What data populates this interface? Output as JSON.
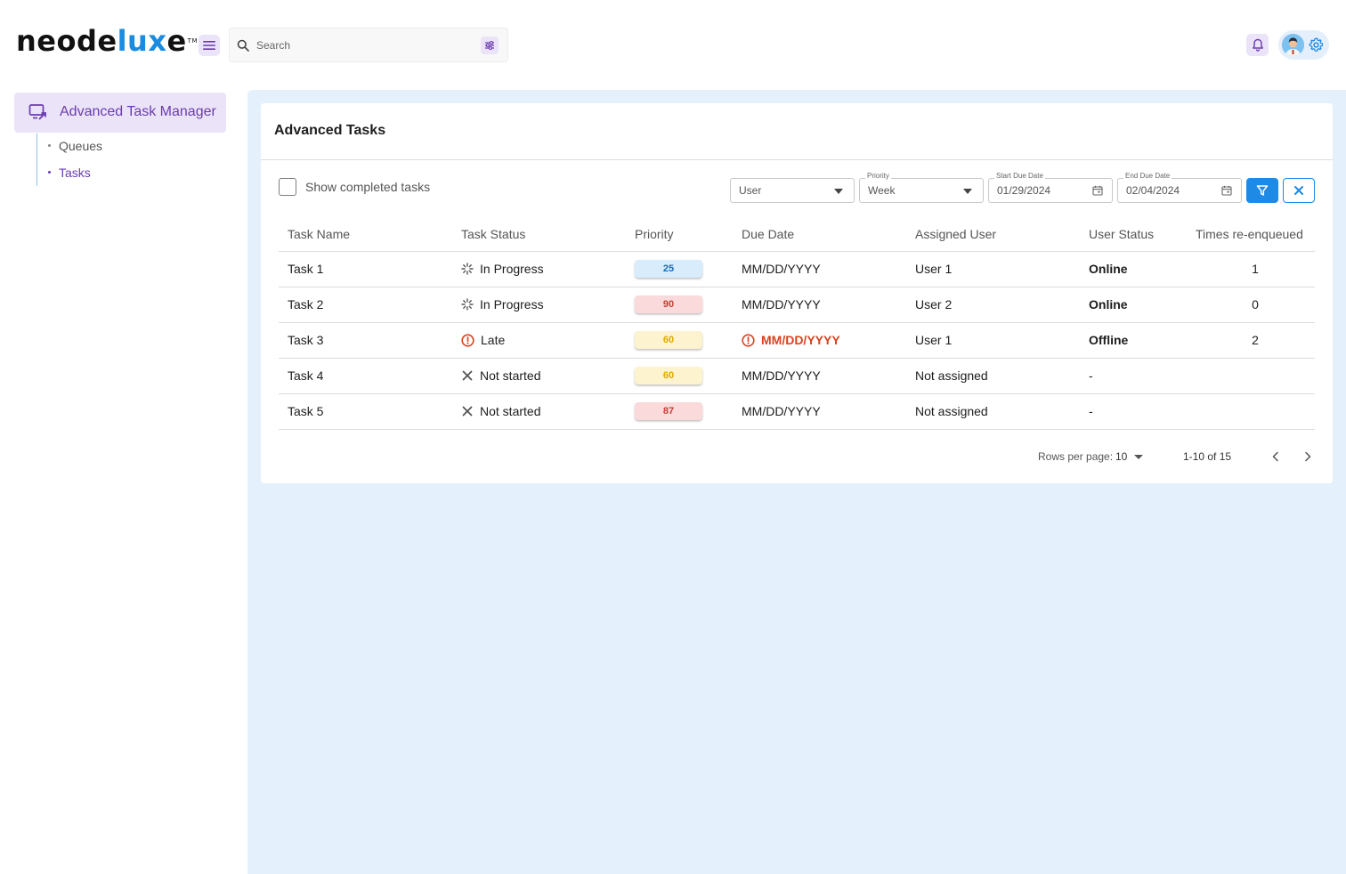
{
  "brand": {
    "prefix": "neode",
    "accent": "lux",
    "suffix": "e",
    "tm": "TM"
  },
  "search": {
    "placeholder": "Search"
  },
  "sidebar": {
    "active_section": "Advanced Task Manager",
    "items": [
      {
        "label": "Queues",
        "active": false
      },
      {
        "label": "Tasks",
        "active": true
      }
    ]
  },
  "card": {
    "title": "Advanced Tasks",
    "show_completed_label": "Show completed tasks",
    "filters": {
      "user": {
        "value": "User"
      },
      "priority": {
        "label": "Priority",
        "value": "Week"
      },
      "start_due": {
        "label": "Start Due Date",
        "value": "01/29/2024"
      },
      "end_due": {
        "label": "End Due Date",
        "value": "02/04/2024"
      }
    }
  },
  "table": {
    "headers": [
      "Task Name",
      "Task Status",
      "Priority",
      "Due Date",
      "Assigned User",
      "User Status",
      "Times re-enqueued"
    ],
    "rows": [
      {
        "name": "Task 1",
        "status": "In Progress",
        "status_icon": "spinner-icon",
        "priority": "25",
        "priority_color": "blue",
        "due": "MM/DD/YYYY",
        "due_late": false,
        "user": "User 1",
        "user_status": "Online",
        "requeued": "1"
      },
      {
        "name": "Task 2",
        "status": "In Progress",
        "status_icon": "spinner-icon",
        "priority": "90",
        "priority_color": "red",
        "due": "MM/DD/YYYY",
        "due_late": false,
        "user": "User 2",
        "user_status": "Online",
        "requeued": "0"
      },
      {
        "name": "Task 3",
        "status": "Late",
        "status_icon": "alert-icon",
        "priority": "60",
        "priority_color": "yellow",
        "due": "MM/DD/YYYY",
        "due_late": true,
        "user": "User 1",
        "user_status": "Offline",
        "requeued": "2"
      },
      {
        "name": "Task 4",
        "status": "Not started",
        "status_icon": "x-icon",
        "priority": "60",
        "priority_color": "yellow",
        "due": "MM/DD/YYYY",
        "due_late": false,
        "user": "Not assigned",
        "user_status": "-",
        "requeued": ""
      },
      {
        "name": "Task 5",
        "status": "Not started",
        "status_icon": "x-icon",
        "priority": "87",
        "priority_color": "red",
        "due": "MM/DD/YYYY",
        "due_late": false,
        "user": "Not assigned",
        "user_status": "-",
        "requeued": ""
      }
    ]
  },
  "pagination": {
    "rows_per_page_label": "Rows per page:",
    "rows_per_page": "10",
    "range": "1-10 of 15"
  },
  "colors": {
    "accent_purple": "#6a3cb0",
    "accent_blue": "#1f8ae6",
    "main_bg": "#e4f1fd",
    "online": "#12b34a",
    "offline": "#d9431e"
  }
}
